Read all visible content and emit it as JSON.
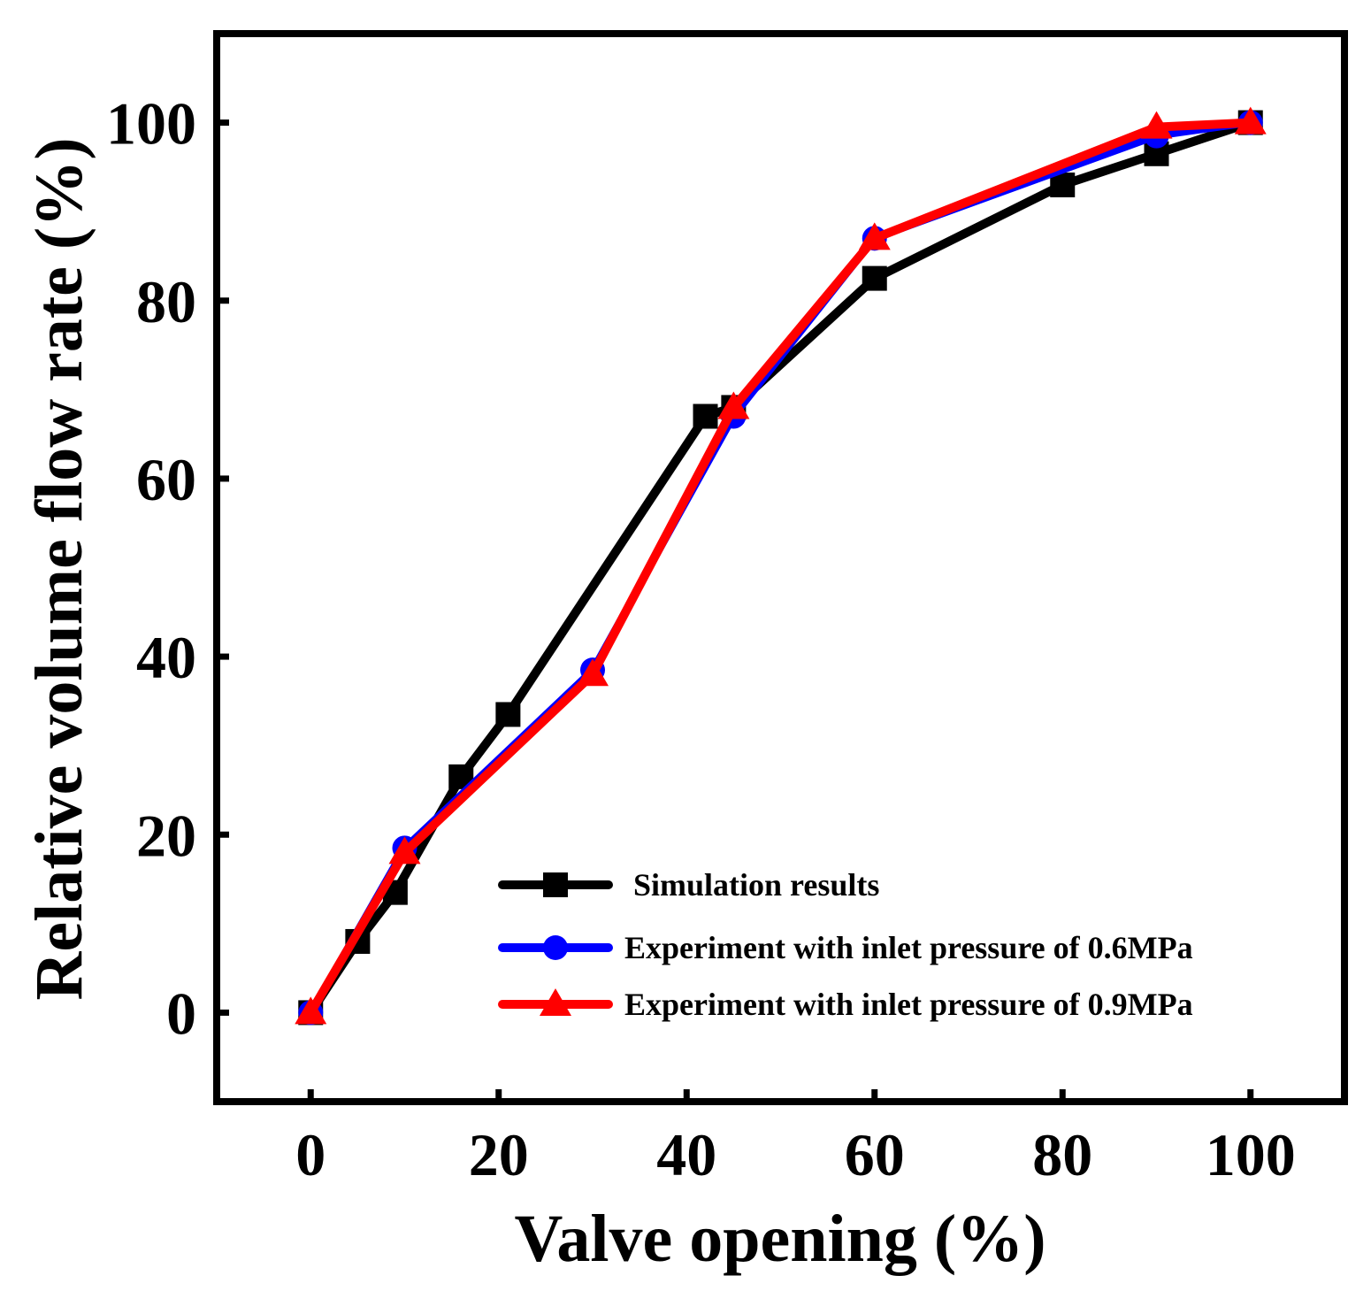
{
  "chart_data": {
    "type": "line",
    "title": "",
    "xlabel": "Valve opening (%)",
    "ylabel": "Relative volume flow rate (%)",
    "xlim": [
      -10,
      110
    ],
    "ylim": [
      -10,
      110
    ],
    "xticks": [
      0,
      20,
      40,
      60,
      80,
      100
    ],
    "yticks": [
      0,
      20,
      40,
      60,
      80,
      100
    ],
    "grid": false,
    "legend_position": "bottom-right",
    "series": [
      {
        "name": "Simulation results",
        "color": "#000000",
        "marker": "square",
        "x": [
          0,
          5,
          9,
          16,
          21,
          42,
          45,
          60,
          80,
          90,
          100
        ],
        "y": [
          0,
          8,
          13.5,
          26.5,
          33.5,
          67,
          68,
          82.5,
          93,
          96.5,
          100
        ]
      },
      {
        "name": "Experiment with inlet pressure of 0.6MPa",
        "color": "#0000ff",
        "marker": "circle",
        "x": [
          0,
          10,
          30,
          45,
          60,
          90,
          100
        ],
        "y": [
          0,
          18.5,
          38.5,
          67,
          87,
          98.5,
          100
        ]
      },
      {
        "name": "Experiment with inlet pressure of 0.9MPa",
        "color": "#ff0000",
        "marker": "triangle",
        "x": [
          0,
          10,
          30,
          45,
          60,
          90,
          100
        ],
        "y": [
          0,
          18,
          38,
          68,
          87,
          99.5,
          100
        ]
      }
    ]
  }
}
